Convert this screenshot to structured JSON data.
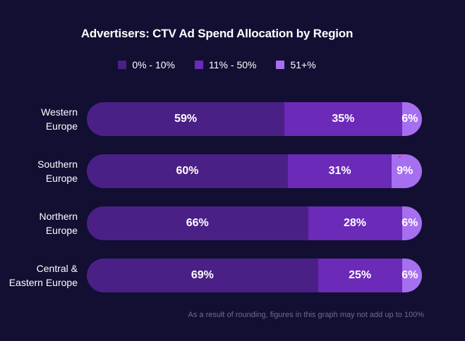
{
  "chart_data": {
    "type": "bar",
    "orientation": "horizontal",
    "stacked": true,
    "title": "Advertisers: CTV Ad Spend Allocation by Region",
    "categories": [
      "Western\nEurope",
      "Southern\nEurope",
      "Northern\nEurope",
      "Central &\nEastern Europe"
    ],
    "series": [
      {
        "name": "0% - 10%",
        "values": [
          59,
          60,
          66,
          69
        ],
        "color": "#4b2086"
      },
      {
        "name": "11% - 50%",
        "values": [
          35,
          31,
          28,
          25
        ],
        "color": "#6c2ab8"
      },
      {
        "name": "51+%",
        "values": [
          6,
          9,
          6,
          6
        ],
        "color": "#a66ff0"
      }
    ],
    "value_suffix": "%",
    "legend_position": "top",
    "note": "As a result of rounding, figures in this graph may not add up to 100%"
  }
}
